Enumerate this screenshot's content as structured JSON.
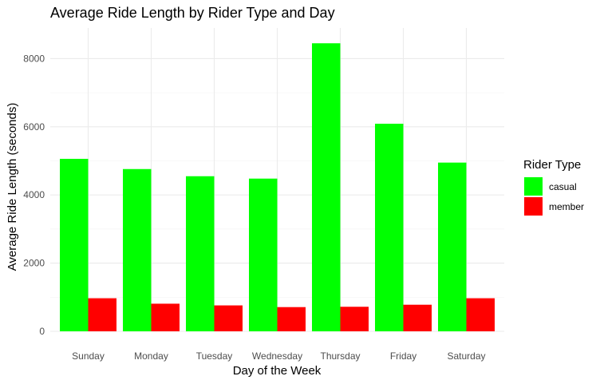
{
  "chart_data": {
    "type": "bar",
    "title": "Average Ride Length by Rider Type and Day",
    "xlabel": "Day of the Week",
    "ylabel": "Average Ride Length (seconds)",
    "categories": [
      "Sunday",
      "Monday",
      "Tuesday",
      "Wednesday",
      "Thursday",
      "Friday",
      "Saturday"
    ],
    "series": [
      {
        "name": "casual",
        "color": "#00ff00",
        "values": [
          5060,
          4760,
          4550,
          4480,
          8450,
          6090,
          4950
        ]
      },
      {
        "name": "member",
        "color": "#ff0000",
        "values": [
          970,
          810,
          760,
          710,
          720,
          780,
          970
        ]
      }
    ],
    "ylim": [
      0,
      8900
    ],
    "yticks": [
      0,
      2000,
      4000,
      6000,
      8000
    ],
    "grid": true,
    "legend": {
      "title": "Rider Type",
      "placement": "right"
    }
  }
}
